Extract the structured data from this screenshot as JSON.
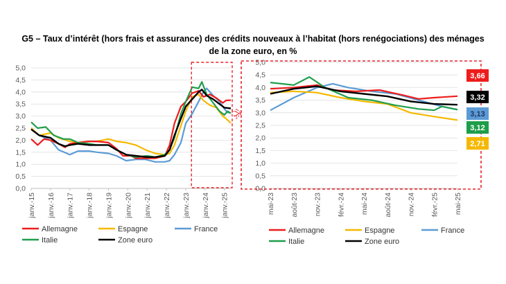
{
  "title_line1": "G5 – Taux d’intérêt (hors frais et assurance) des crédits nouveaux à l’habitat (hors renégociations) des ménages",
  "title_line2": "de la zone euro, en %",
  "colors": {
    "Allemagne": "#ee1c1c",
    "Espagne": "#f5b800",
    "France": "#5b9bd5",
    "Italie": "#1e9e4a",
    "Zone euro": "#000000",
    "highlight": "#e8222b"
  },
  "chart_data": [
    {
      "type": "line",
      "title": "",
      "x_type": "time",
      "xlim": [
        "2015-01",
        "2025-05"
      ],
      "ylim": [
        0,
        5
      ],
      "yticks": [
        "0,0",
        "0,5",
        "1,0",
        "1,5",
        "2,0",
        "2,5",
        "3,0",
        "3,5",
        "4,0",
        "4,5",
        "5,0"
      ],
      "xticks": [
        "janv.-15",
        "janv.-16",
        "janv.-17",
        "janv.-18",
        "janv.-19",
        "janv.-20",
        "janv.-21",
        "janv.-22",
        "janv.-23",
        "janv.-24",
        "janv.-25"
      ],
      "highlight_range": [
        "2023-05",
        "2025-05"
      ],
      "series": [
        {
          "name": "Allemagne",
          "points": [
            [
              "2015-01",
              2.05
            ],
            [
              "2015-05",
              1.8
            ],
            [
              "2015-09",
              2.05
            ],
            [
              "2016-01",
              2.0
            ],
            [
              "2016-06",
              1.85
            ],
            [
              "2016-10",
              1.7
            ],
            [
              "2017-01",
              1.85
            ],
            [
              "2017-06",
              1.9
            ],
            [
              "2018-01",
              1.95
            ],
            [
              "2018-06",
              1.95
            ],
            [
              "2019-01",
              1.9
            ],
            [
              "2019-06",
              1.65
            ],
            [
              "2019-10",
              1.35
            ],
            [
              "2020-03",
              1.35
            ],
            [
              "2020-06",
              1.25
            ],
            [
              "2021-01",
              1.25
            ],
            [
              "2021-06",
              1.25
            ],
            [
              "2021-12",
              1.35
            ],
            [
              "2022-03",
              1.8
            ],
            [
              "2022-06",
              2.7
            ],
            [
              "2022-10",
              3.4
            ],
            [
              "2023-01",
              3.6
            ],
            [
              "2023-05",
              3.95
            ],
            [
              "2023-09",
              4.05
            ],
            [
              "2023-12",
              3.8
            ],
            [
              "2024-04",
              3.9
            ],
            [
              "2024-08",
              3.75
            ],
            [
              "2024-12",
              3.55
            ],
            [
              "2025-02",
              3.65
            ],
            [
              "2025-05",
              3.66
            ]
          ]
        },
        {
          "name": "Espagne",
          "points": [
            [
              "2015-01",
              2.5
            ],
            [
              "2015-06",
              2.2
            ],
            [
              "2016-01",
              2.3
            ],
            [
              "2016-06",
              2.1
            ],
            [
              "2017-01",
              1.95
            ],
            [
              "2017-06",
              1.9
            ],
            [
              "2018-01",
              1.95
            ],
            [
              "2018-06",
              1.95
            ],
            [
              "2019-01",
              2.05
            ],
            [
              "2019-06",
              1.95
            ],
            [
              "2019-12",
              1.9
            ],
            [
              "2020-06",
              1.8
            ],
            [
              "2020-12",
              1.6
            ],
            [
              "2021-06",
              1.45
            ],
            [
              "2021-12",
              1.4
            ],
            [
              "2022-03",
              1.45
            ],
            [
              "2022-06",
              1.8
            ],
            [
              "2022-10",
              2.6
            ],
            [
              "2023-01",
              3.2
            ],
            [
              "2023-05",
              3.8
            ],
            [
              "2023-09",
              3.9
            ],
            [
              "2023-12",
              3.65
            ],
            [
              "2024-04",
              3.45
            ],
            [
              "2024-08",
              3.35
            ],
            [
              "2024-12",
              3.0
            ],
            [
              "2025-02",
              2.9
            ],
            [
              "2025-05",
              2.71
            ]
          ]
        },
        {
          "name": "France",
          "points": [
            [
              "2015-01",
              2.5
            ],
            [
              "2015-06",
              2.2
            ],
            [
              "2016-01",
              2.0
            ],
            [
              "2016-06",
              1.6
            ],
            [
              "2017-01",
              1.4
            ],
            [
              "2017-06",
              1.55
            ],
            [
              "2018-01",
              1.55
            ],
            [
              "2018-06",
              1.5
            ],
            [
              "2019-01",
              1.45
            ],
            [
              "2019-06",
              1.35
            ],
            [
              "2019-12",
              1.15
            ],
            [
              "2020-06",
              1.2
            ],
            [
              "2020-12",
              1.2
            ],
            [
              "2021-06",
              1.1
            ],
            [
              "2021-12",
              1.1
            ],
            [
              "2022-03",
              1.15
            ],
            [
              "2022-06",
              1.4
            ],
            [
              "2022-10",
              1.9
            ],
            [
              "2023-01",
              2.7
            ],
            [
              "2023-05",
              3.1
            ],
            [
              "2023-09",
              3.6
            ],
            [
              "2023-12",
              4.0
            ],
            [
              "2024-02",
              4.15
            ],
            [
              "2024-06",
              3.85
            ],
            [
              "2024-10",
              3.6
            ],
            [
              "2025-01",
              3.3
            ],
            [
              "2025-03",
              3.15
            ],
            [
              "2025-05",
              3.13
            ]
          ]
        },
        {
          "name": "Italie",
          "points": [
            [
              "2015-01",
              2.75
            ],
            [
              "2015-05",
              2.5
            ],
            [
              "2015-10",
              2.55
            ],
            [
              "2016-03",
              2.2
            ],
            [
              "2016-09",
              2.05
            ],
            [
              "2017-01",
              2.05
            ],
            [
              "2017-06",
              1.9
            ],
            [
              "2018-01",
              1.85
            ],
            [
              "2018-06",
              1.8
            ],
            [
              "2019-01",
              1.8
            ],
            [
              "2019-06",
              1.6
            ],
            [
              "2019-12",
              1.4
            ],
            [
              "2020-06",
              1.3
            ],
            [
              "2021-01",
              1.35
            ],
            [
              "2021-06",
              1.3
            ],
            [
              "2021-12",
              1.4
            ],
            [
              "2022-03",
              1.6
            ],
            [
              "2022-06",
              2.1
            ],
            [
              "2022-10",
              3.1
            ],
            [
              "2023-01",
              3.6
            ],
            [
              "2023-05",
              4.2
            ],
            [
              "2023-09",
              4.15
            ],
            [
              "2023-11",
              4.42
            ],
            [
              "2024-02",
              3.9
            ],
            [
              "2024-06",
              3.55
            ],
            [
              "2024-10",
              3.2
            ],
            [
              "2025-01",
              3.05
            ],
            [
              "2025-03",
              3.2
            ],
            [
              "2025-05",
              3.12
            ]
          ]
        },
        {
          "name": "Zone euro",
          "points": [
            [
              "2015-01",
              2.45
            ],
            [
              "2015-06",
              2.2
            ],
            [
              "2016-01",
              2.1
            ],
            [
              "2016-06",
              1.85
            ],
            [
              "2016-10",
              1.75
            ],
            [
              "2017-01",
              1.8
            ],
            [
              "2017-06",
              1.85
            ],
            [
              "2018-01",
              1.8
            ],
            [
              "2018-06",
              1.8
            ],
            [
              "2019-01",
              1.8
            ],
            [
              "2019-06",
              1.6
            ],
            [
              "2019-12",
              1.4
            ],
            [
              "2020-06",
              1.35
            ],
            [
              "2021-01",
              1.3
            ],
            [
              "2021-06",
              1.3
            ],
            [
              "2021-12",
              1.35
            ],
            [
              "2022-03",
              1.6
            ],
            [
              "2022-06",
              2.2
            ],
            [
              "2022-10",
              2.9
            ],
            [
              "2023-01",
              3.4
            ],
            [
              "2023-05",
              3.7
            ],
            [
              "2023-09",
              4.0
            ],
            [
              "2023-11",
              4.1
            ],
            [
              "2024-02",
              3.85
            ],
            [
              "2024-06",
              3.7
            ],
            [
              "2024-10",
              3.5
            ],
            [
              "2025-01",
              3.35
            ],
            [
              "2025-05",
              3.32
            ]
          ]
        }
      ],
      "legend": {
        "placement": "bottom",
        "items": [
          "Allemagne",
          "Espagne",
          "France",
          "Italie",
          "Zone euro"
        ]
      }
    },
    {
      "type": "line",
      "title": "",
      "x_type": "time",
      "xlim": [
        "2023-05",
        "2025-05"
      ],
      "ylim": [
        0,
        5
      ],
      "yticks": [
        "0,0",
        "0,5",
        "1,0",
        "1,5",
        "2,0",
        "2,5",
        "3,0",
        "3,5",
        "4,0",
        "4,5",
        "5,0"
      ],
      "xticks": [
        "mai-23",
        "août-23",
        "nov.-23",
        "févr.-24",
        "mai-24",
        "août-24",
        "nov.-24",
        "févr.-25",
        "mai-25"
      ],
      "series": [
        {
          "name": "Allemagne",
          "points": [
            [
              "2023-05",
              3.95
            ],
            [
              "2023-08",
              4.0
            ],
            [
              "2023-11",
              4.1
            ],
            [
              "2024-01",
              3.9
            ],
            [
              "2024-04",
              3.85
            ],
            [
              "2024-07",
              3.9
            ],
            [
              "2024-10",
              3.7
            ],
            [
              "2024-12",
              3.55
            ],
            [
              "2025-02",
              3.6
            ],
            [
              "2025-05",
              3.66
            ]
          ]
        },
        {
          "name": "Espagne",
          "points": [
            [
              "2023-05",
              3.8
            ],
            [
              "2023-08",
              3.85
            ],
            [
              "2023-11",
              3.8
            ],
            [
              "2024-02",
              3.6
            ],
            [
              "2024-05",
              3.45
            ],
            [
              "2024-08",
              3.35
            ],
            [
              "2024-11",
              3.0
            ],
            [
              "2025-02",
              2.85
            ],
            [
              "2025-05",
              2.71
            ]
          ]
        },
        {
          "name": "France",
          "points": [
            [
              "2023-05",
              3.1
            ],
            [
              "2023-08",
              3.6
            ],
            [
              "2023-11",
              4.0
            ],
            [
              "2024-01",
              4.15
            ],
            [
              "2024-03",
              4.0
            ],
            [
              "2024-06",
              3.85
            ],
            [
              "2024-09",
              3.75
            ],
            [
              "2024-12",
              3.5
            ],
            [
              "2025-03",
              3.25
            ],
            [
              "2025-05",
              3.13
            ]
          ]
        },
        {
          "name": "Italie",
          "points": [
            [
              "2023-05",
              4.2
            ],
            [
              "2023-08",
              4.1
            ],
            [
              "2023-10",
              4.42
            ],
            [
              "2023-12",
              4.0
            ],
            [
              "2024-03",
              3.6
            ],
            [
              "2024-06",
              3.5
            ],
            [
              "2024-09",
              3.3
            ],
            [
              "2024-12",
              3.15
            ],
            [
              "2025-02",
              3.1
            ],
            [
              "2025-03",
              3.25
            ],
            [
              "2025-05",
              3.12
            ]
          ]
        },
        {
          "name": "Zone euro",
          "points": [
            [
              "2023-05",
              3.75
            ],
            [
              "2023-08",
              3.95
            ],
            [
              "2023-11",
              4.05
            ],
            [
              "2024-02",
              3.85
            ],
            [
              "2024-05",
              3.75
            ],
            [
              "2024-08",
              3.65
            ],
            [
              "2024-11",
              3.45
            ],
            [
              "2025-02",
              3.35
            ],
            [
              "2025-05",
              3.32
            ]
          ]
        }
      ],
      "end_labels": [
        {
          "series": "Allemagne",
          "text": "3,66",
          "value": 3.66
        },
        {
          "series": "Zone euro",
          "text": "3,32",
          "value": 3.32
        },
        {
          "series": "France",
          "text": "3,13",
          "value": 3.13
        },
        {
          "series": "Italie",
          "text": "3,12",
          "value": 3.12
        },
        {
          "series": "Espagne",
          "text": "2,71",
          "value": 2.71
        }
      ],
      "legend": {
        "placement": "bottom",
        "items": [
          "Allemagne",
          "Espagne",
          "France",
          "Italie",
          "Zone euro"
        ]
      }
    }
  ]
}
